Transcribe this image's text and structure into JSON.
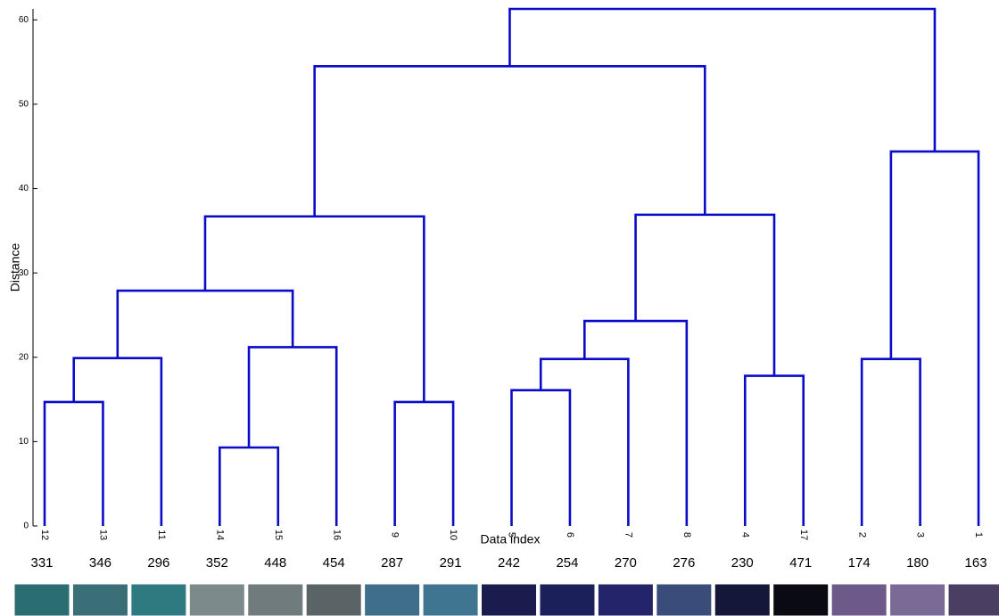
{
  "chart_data": {
    "type": "dendrogram",
    "ylabel": "Distance",
    "xlabel": "Data index",
    "color": "#0a0ac8",
    "ylim": [
      0,
      61.3
    ],
    "yticks": [
      0,
      10,
      20,
      30,
      40,
      50,
      60
    ],
    "tree": {
      "height": 61.3,
      "children": [
        {
          "height": 54.5,
          "children": [
            {
              "height": 36.7,
              "children": [
                {
                  "height": 27.9,
                  "children": [
                    {
                      "height": 19.9,
                      "children": [
                        {
                          "height": 14.7,
                          "children": [
                            {
                              "label": "12",
                              "image": "331"
                            },
                            {
                              "label": "13",
                              "image": "346"
                            }
                          ]
                        },
                        {
                          "label": "11",
                          "image": "296"
                        }
                      ]
                    },
                    {
                      "height": 21.2,
                      "children": [
                        {
                          "height": 9.3,
                          "children": [
                            {
                              "label": "14",
                              "image": "352"
                            },
                            {
                              "label": "15",
                              "image": "448"
                            }
                          ]
                        },
                        {
                          "label": "16",
                          "image": "454"
                        }
                      ]
                    }
                  ]
                },
                {
                  "height": 14.7,
                  "children": [
                    {
                      "label": "9",
                      "image": "287"
                    },
                    {
                      "label": "10",
                      "image": "291"
                    }
                  ]
                }
              ]
            },
            {
              "height": 36.9,
              "children": [
                {
                  "height": 24.3,
                  "children": [
                    {
                      "height": 19.8,
                      "children": [
                        {
                          "height": 16.1,
                          "children": [
                            {
                              "label": "5",
                              "image": "242"
                            },
                            {
                              "label": "6",
                              "image": "254"
                            }
                          ]
                        },
                        {
                          "label": "7",
                          "image": "270"
                        }
                      ]
                    },
                    {
                      "label": "8",
                      "image": "276"
                    }
                  ]
                },
                {
                  "height": 17.8,
                  "children": [
                    {
                      "label": "4",
                      "image": "230"
                    },
                    {
                      "label": "17",
                      "image": "471"
                    }
                  ]
                }
              ]
            }
          ]
        },
        {
          "height": 44.4,
          "children": [
            {
              "height": 19.8,
              "children": [
                {
                  "label": "2",
                  "image": "174"
                },
                {
                  "label": "3",
                  "image": "180"
                }
              ]
            },
            {
              "label": "1",
              "image": "163"
            }
          ]
        }
      ]
    }
  }
}
